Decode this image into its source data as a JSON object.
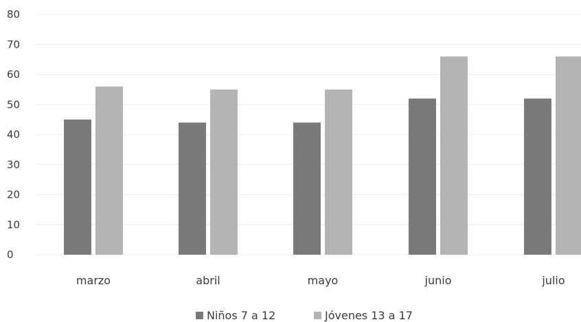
{
  "chart_data": {
    "type": "bar",
    "title": "",
    "xlabel": "",
    "ylabel": "",
    "categories": [
      "marzo",
      "abril",
      "mayo",
      "junio",
      "julio"
    ],
    "series": [
      {
        "name": "Niños 7 a 12",
        "values": [
          45,
          44,
          44,
          52,
          52
        ],
        "color": "#7a7a7a"
      },
      {
        "name": "Jóvenes 13 a 17",
        "values": [
          56,
          55,
          55,
          66,
          66
        ],
        "color": "#b4b4b4"
      }
    ],
    "ylim": [
      0,
      80
    ],
    "yticks": [
      0,
      10,
      20,
      30,
      40,
      50,
      60,
      70,
      80
    ],
    "grid": true,
    "legend": "bottom"
  }
}
